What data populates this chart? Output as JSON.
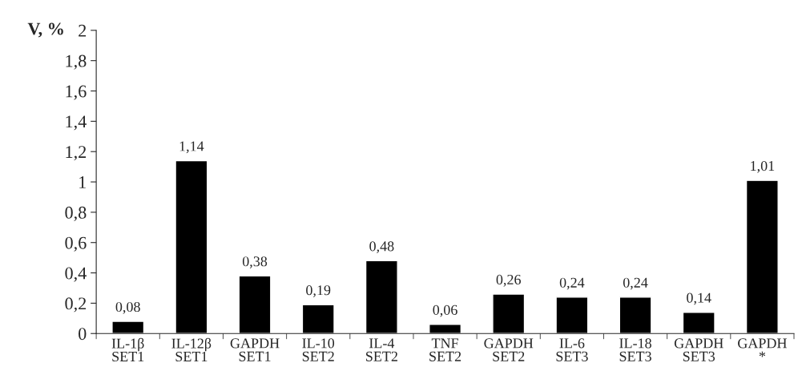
{
  "chart_data": {
    "type": "bar",
    "ylabel": "V, %",
    "categories": [
      "IL-1β\nSET1",
      "IL-12β\nSET1",
      "GAPDH\nSET1",
      "IL-10\nSET2",
      "IL-4\nSET2",
      "TNF\nSET2",
      "GAPDH\nSET2",
      "IL-6\nSET3",
      "IL-18\nSET3",
      "GAPDH\nSET3",
      "GAPDH\n*"
    ],
    "values": [
      0.08,
      1.14,
      0.38,
      0.19,
      0.48,
      0.06,
      0.26,
      0.24,
      0.24,
      0.14,
      1.01
    ],
    "value_labels": [
      "0,08",
      "1,14",
      "0,38",
      "0,19",
      "0,48",
      "0,06",
      "0,26",
      "0,24",
      "0,24",
      "0,14",
      "1,01"
    ],
    "color": "#000000",
    "ylim": [
      0,
      2
    ],
    "yticks": [
      0,
      {
        "value": 0.2,
        "label": "0,2"
      },
      {
        "value": 0.4,
        "label": "0,4"
      },
      {
        "value": 0.6,
        "label": "0,6"
      },
      {
        "value": 0.8,
        "label": "0,8"
      },
      1,
      {
        "value": 1.2,
        "label": "1,2"
      },
      {
        "value": 1.4,
        "label": "1,4"
      },
      {
        "value": 1.6,
        "label": "1,6"
      },
      {
        "value": 1.8,
        "label": "1,8"
      },
      2
    ],
    "grid": false,
    "legend": false
  }
}
